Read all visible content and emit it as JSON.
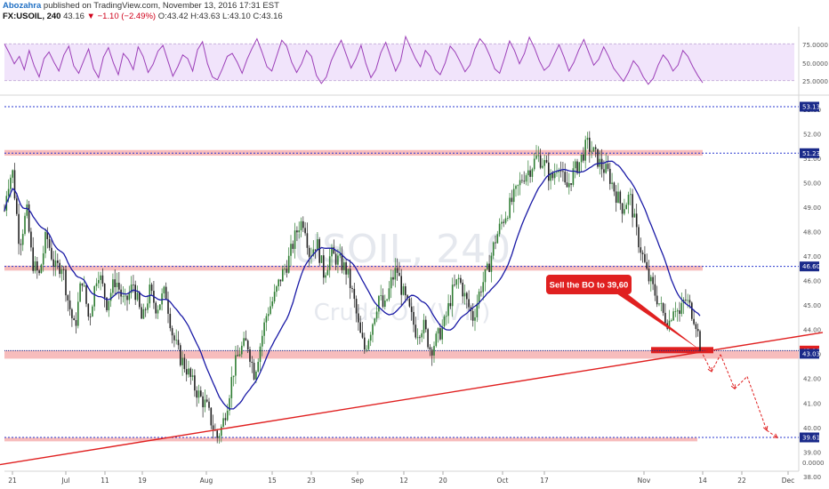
{
  "header": {
    "line1_author": "Abozahra",
    "line1_rest": " published on TradingView.com, November 13, 2016 17:31 EST",
    "symbol": "FX:USOIL, 240",
    "last": "43.16",
    "change": "▼ −1.10 (−2.49%)",
    "ohlc": "O:43.42 H:43.63 L:43.10 C:43.16"
  },
  "watermark": {
    "line1": "USOIL, 240",
    "line2": "Crude Oil (WTI)"
  },
  "callout": {
    "text": "Sell the BO to 39,60"
  },
  "colors": {
    "candle_up": "#2e7d32",
    "candle_down": "#222222",
    "ma_line": "#1a1aa6",
    "rsi_line": "#9c3fb8",
    "rsi_band": "#f1e4fb",
    "zone": "#f4a6a6",
    "trendline": "#e02020",
    "price_badge": "#e02020",
    "level_badge": "#1a2a8a"
  },
  "chart_data": [
    {
      "type": "line",
      "title": "RSI",
      "yticks": [
        "75.0000",
        "50.0000",
        "25.0000"
      ],
      "ylim": [
        10,
        90
      ],
      "band": [
        25,
        75
      ],
      "series": [
        {
          "values": [
            75,
            62,
            48,
            58,
            40,
            66,
            45,
            30,
            55,
            64,
            50,
            38,
            60,
            72,
            45,
            35,
            52,
            68,
            41,
            29,
            57,
            70,
            49,
            33,
            62,
            54,
            40,
            71,
            58,
            36,
            47,
            65,
            73,
            52,
            31,
            44,
            60,
            55,
            38,
            67,
            78,
            48,
            30,
            26,
            41,
            58,
            62,
            50,
            35,
            54,
            69,
            82,
            64,
            44,
            38,
            59,
            80,
            72,
            50,
            36,
            48,
            66,
            58,
            32,
            21,
            30,
            52,
            67,
            80,
            61,
            42,
            55,
            73,
            48,
            29,
            40,
            63,
            77,
            57,
            38,
            52,
            85,
            70,
            55,
            44,
            66,
            58,
            40,
            33,
            49,
            72,
            64,
            51,
            37,
            46,
            68,
            82,
            74,
            59,
            41,
            35,
            56,
            79,
            66,
            48,
            62,
            84,
            70,
            52,
            39,
            45,
            60,
            74,
            57,
            38,
            50,
            67,
            81,
            63,
            46,
            54,
            71,
            58,
            42,
            33,
            24,
            36,
            52,
            44,
            30,
            20,
            28,
            46,
            60,
            52,
            38,
            46,
            66,
            58,
            44,
            32,
            22
          ]
        }
      ]
    },
    {
      "type": "candlestick",
      "title": "USOIL, 240",
      "ylim": [
        37.9,
        53.5
      ],
      "yticks": [
        "53.00",
        "52.00",
        "51.00",
        "50.00",
        "49.00",
        "48.00",
        "47.00",
        "46.00",
        "45.00",
        "44.00",
        "43.00",
        "42.00",
        "41.00",
        "40.00",
        "39.00",
        "38.00"
      ],
      "x_ticks": [
        "21",
        "Jul",
        "11",
        "19",
        "Aug",
        "15",
        "23",
        "Sep",
        "12",
        "20",
        "Oct",
        "17",
        "Nov",
        "14",
        "22",
        "Dec"
      ],
      "keypoints": [
        [
          0,
          47.2
        ],
        [
          8,
          49.9
        ],
        [
          14,
          50.5
        ],
        [
          22,
          47.5
        ],
        [
          30,
          48.9
        ],
        [
          36,
          46.8
        ],
        [
          44,
          46.2
        ],
        [
          52,
          47.9
        ],
        [
          62,
          46.5
        ],
        [
          70,
          46.7
        ],
        [
          76,
          45.3
        ],
        [
          84,
          44.0
        ],
        [
          92,
          46.2
        ],
        [
          100,
          44.4
        ],
        [
          110,
          46.5
        ],
        [
          120,
          45.1
        ],
        [
          130,
          46.1
        ],
        [
          140,
          45.0
        ],
        [
          150,
          45.9
        ],
        [
          160,
          44.3
        ],
        [
          168,
          45.6
        ],
        [
          176,
          44.9
        ],
        [
          186,
          45.6
        ],
        [
          194,
          43.8
        ],
        [
          202,
          42.9
        ],
        [
          210,
          42.4
        ],
        [
          218,
          41.7
        ],
        [
          226,
          41.2
        ],
        [
          232,
          40.9
        ],
        [
          238,
          40.2
        ],
        [
          244,
          39.6
        ],
        [
          250,
          40.1
        ],
        [
          256,
          41.1
        ],
        [
          262,
          42.3
        ],
        [
          270,
          43.2
        ],
        [
          278,
          43.5
        ],
        [
          286,
          42.2
        ],
        [
          292,
          43.3
        ],
        [
          300,
          44.7
        ],
        [
          308,
          45.3
        ],
        [
          316,
          46.2
        ],
        [
          324,
          46.8
        ],
        [
          330,
          47.6
        ],
        [
          336,
          48.3
        ],
        [
          342,
          48.5
        ],
        [
          348,
          47.1
        ],
        [
          356,
          47.6
        ],
        [
          364,
          46.3
        ],
        [
          372,
          47.1
        ],
        [
          382,
          46.8
        ],
        [
          390,
          46.4
        ],
        [
          398,
          45.2
        ],
        [
          404,
          43.9
        ],
        [
          410,
          43.2
        ],
        [
          418,
          44.2
        ],
        [
          426,
          45.4
        ],
        [
          432,
          44.8
        ],
        [
          440,
          46.0
        ],
        [
          446,
          46.5
        ],
        [
          452,
          45.6
        ],
        [
          460,
          44.8
        ],
        [
          468,
          43.9
        ],
        [
          476,
          44.2
        ],
        [
          484,
          43.2
        ],
        [
          492,
          43.7
        ],
        [
          500,
          44.3
        ],
        [
          508,
          45.5
        ],
        [
          516,
          46.1
        ],
        [
          524,
          45.2
        ],
        [
          532,
          44.5
        ],
        [
          540,
          45.7
        ],
        [
          548,
          46.4
        ],
        [
          556,
          47.6
        ],
        [
          564,
          48.4
        ],
        [
          572,
          49.0
        ],
        [
          580,
          49.6
        ],
        [
          588,
          50.3
        ],
        [
          596,
          50.6
        ],
        [
          604,
          51.1
        ],
        [
          612,
          50.8
        ],
        [
          620,
          50.1
        ],
        [
          628,
          50.9
        ],
        [
          636,
          49.7
        ],
        [
          644,
          50.4
        ],
        [
          652,
          50.9
        ],
        [
          660,
          51.6
        ],
        [
          668,
          51.2
        ],
        [
          676,
          50.7
        ],
        [
          684,
          50.4
        ],
        [
          692,
          49.6
        ],
        [
          700,
          49.0
        ],
        [
          708,
          49.5
        ],
        [
          716,
          47.9
        ],
        [
          722,
          47.1
        ],
        [
          728,
          46.2
        ],
        [
          734,
          45.7
        ],
        [
          740,
          45.2
        ],
        [
          746,
          44.6
        ],
        [
          752,
          44.3
        ],
        [
          758,
          45.1
        ],
        [
          764,
          44.6
        ],
        [
          770,
          45.3
        ],
        [
          776,
          44.9
        ],
        [
          782,
          44.4
        ],
        [
          788,
          43.16
        ]
      ],
      "levels": [
        {
          "price": 53.13,
          "label": "53.13",
          "style": "dashed"
        },
        {
          "price": 51.23,
          "label": "51.23",
          "style": "dashed",
          "zone": [
            51.13,
            51.36
          ]
        },
        {
          "price": 46.6,
          "label": "46.60",
          "style": "dashed",
          "zone": [
            46.43,
            46.63
          ]
        },
        {
          "price": 43.16,
          "label": "43.16",
          "style": "solid",
          "current": true
        },
        {
          "price": 43.03,
          "label": "43.03",
          "zone": [
            42.83,
            43.16
          ]
        },
        {
          "price": 39.61,
          "label": "39.61",
          "style": "dashed",
          "zone": [
            39.45,
            39.6
          ]
        }
      ],
      "trendline": {
        "from": [
          0,
          38.5
        ],
        "to": [
          925,
          43.9
        ]
      },
      "callout": {
        "text": "Sell the BO to 39,60",
        "target": [
          788,
          43.16
        ]
      },
      "projection": [
        [
          788,
          43.16
        ],
        [
          800,
          42.3
        ],
        [
          810,
          43.0
        ],
        [
          826,
          41.6
        ],
        [
          840,
          42.1
        ],
        [
          862,
          39.9
        ],
        [
          874,
          39.6
        ]
      ],
      "rsi_zero_label": "0.0000"
    }
  ]
}
